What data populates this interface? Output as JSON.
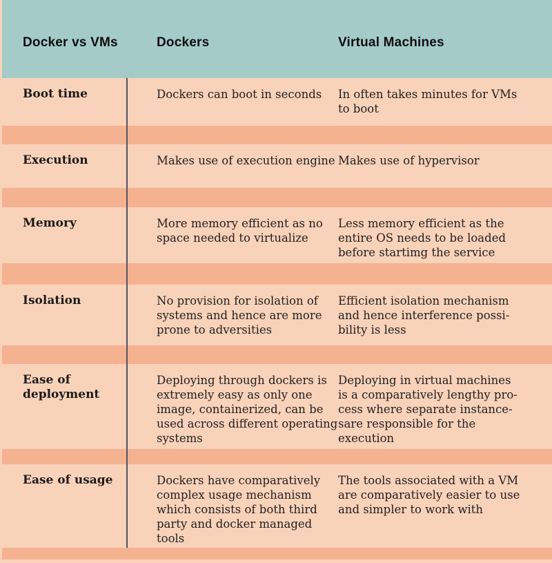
{
  "palette": {
    "header_bg": "#a4cbc8",
    "row_bg": "#f9d2ba",
    "stripe_color": "#f5b291",
    "divider_color": "#50525f",
    "text_color": "#23211f"
  },
  "header": {
    "title": "Docker vs VMs",
    "col_dockers": "Dockers",
    "col_vms": "Virtual Machines"
  },
  "rows": [
    {
      "label": "Boot time",
      "dockers": [
        "Dockers can boot in seconds"
      ],
      "vms": [
        "In often takes minutes for VMs",
        "to boot"
      ]
    },
    {
      "label": "Execution",
      "dockers": [
        "Makes use of execution engine"
      ],
      "vms": [
        "Makes use of hypervisor"
      ]
    },
    {
      "label": "Memory",
      "dockers": [
        "More memory efficient as no",
        "space needed to virtualize"
      ],
      "vms": [
        "Less memory efficient as the",
        "entire OS needs to be loaded",
        "before startimg the service"
      ]
    },
    {
      "label": "Isolation",
      "dockers": [
        "No provision for isolation of",
        "systems and hence are more",
        "prone to adversities"
      ],
      "vms": [
        "Efficient isolation mechanism",
        "and hence interference possi-",
        "bility is less"
      ]
    },
    {
      "label": [
        "Ease of",
        "deployment"
      ],
      "dockers": [
        "Deploying through dockers is",
        "extremely easy as only one",
        "image, containerized, can be",
        "used across different operating",
        "systems"
      ],
      "vms": [
        "Deploying in virtual machines",
        "is a comparatively lengthy pro-",
        "cess where separate instance-",
        "sare responsible for the",
        "execution"
      ]
    },
    {
      "label": "Ease of usage",
      "dockers": [
        "Dockers have comparatively",
        "complex usage mechanism",
        "which consists of both third",
        "party and docker managed",
        "tools"
      ],
      "vms": [
        "The tools associated with a VM",
        "are comparatively easier to use",
        "and simpler to work with"
      ]
    }
  ]
}
